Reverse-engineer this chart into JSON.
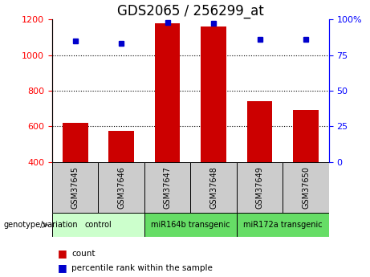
{
  "title": "GDS2065 / 256299_at",
  "samples": [
    "GSM37645",
    "GSM37646",
    "GSM37647",
    "GSM37648",
    "GSM37649",
    "GSM37650"
  ],
  "counts": [
    620,
    575,
    1180,
    1160,
    740,
    690
  ],
  "percentiles": [
    85,
    83,
    98,
    97,
    86,
    86
  ],
  "ylim_left": [
    400,
    1200
  ],
  "ylim_right": [
    0,
    100
  ],
  "yticks_left": [
    400,
    600,
    800,
    1000,
    1200
  ],
  "yticks_right": [
    0,
    25,
    50,
    75,
    100
  ],
  "ytick_labels_right": [
    "0",
    "25",
    "50",
    "75",
    "100%"
  ],
  "bar_color": "#cc0000",
  "dot_color": "#0000cc",
  "grid_color": "#000000",
  "groups": [
    {
      "label": "control",
      "start": 0,
      "end": 2,
      "color": "#ccffcc"
    },
    {
      "label": "miR164b transgenic",
      "start": 2,
      "end": 4,
      "color": "#66dd66"
    },
    {
      "label": "miR172a transgenic",
      "start": 4,
      "end": 6,
      "color": "#66dd66"
    }
  ],
  "legend_count_label": "count",
  "legend_pct_label": "percentile rank within the sample",
  "genotype_label": "genotype/variation",
  "bg_color": "#ffffff",
  "plot_bg_color": "#ffffff",
  "sample_box_color": "#cccccc",
  "title_fontsize": 12,
  "tick_fontsize": 8
}
